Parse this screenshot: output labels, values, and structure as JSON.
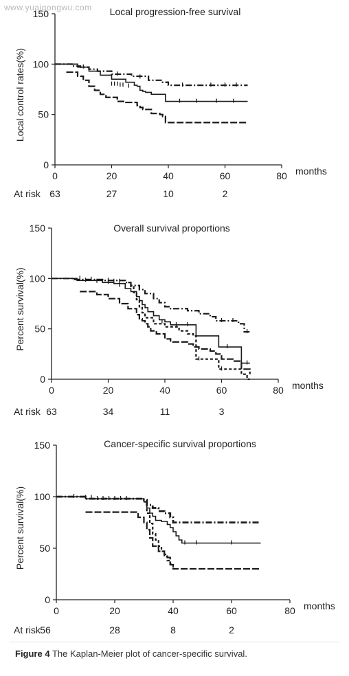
{
  "watermark": "www.yuaigongwu.com",
  "caption": {
    "label": "Figure 4",
    "text": "The Kaplan-Meier plot of cancer-specific survival."
  },
  "at_risk_label": "At risk",
  "x_unit": "months",
  "chart_data": [
    {
      "type": "line",
      "title": "Local progression-free survival",
      "ylabel": "Local control rates(%)",
      "xlabel": "months",
      "xlim": [
        0,
        80
      ],
      "ylim": [
        0,
        150
      ],
      "xticks": [
        0,
        20,
        40,
        60,
        80
      ],
      "yticks": [
        0,
        50,
        100,
        150
      ],
      "at_risk": {
        "first_label": "At risk",
        "x": [
          0,
          20,
          40,
          60
        ],
        "values": [
          "63",
          "27",
          "10",
          "2"
        ]
      },
      "series": [
        {
          "style": "dashdot",
          "points": [
            [
              0,
              100
            ],
            [
              4,
              100
            ],
            [
              6,
              98
            ],
            [
              9,
              97
            ],
            [
              12,
              95
            ],
            [
              15,
              93
            ],
            [
              20,
              90
            ],
            [
              27,
              88
            ],
            [
              33,
              84
            ],
            [
              38,
              82
            ],
            [
              40,
              79
            ],
            [
              68,
              79
            ]
          ],
          "censored": [
            [
              10,
              97
            ],
            [
              22,
              90
            ],
            [
              30,
              87
            ],
            [
              45,
              79
            ],
            [
              55,
              79
            ],
            [
              60,
              79
            ],
            [
              64,
              79
            ]
          ]
        },
        {
          "style": "solid",
          "points": [
            [
              0,
              100
            ],
            [
              6,
              100
            ],
            [
              8,
              97
            ],
            [
              12,
              93
            ],
            [
              16,
              89
            ],
            [
              20,
              85
            ],
            [
              25,
              82
            ],
            [
              28,
              79
            ],
            [
              29,
              78
            ],
            [
              30,
              74
            ],
            [
              31,
              73
            ],
            [
              32,
              72
            ],
            [
              34,
              70
            ],
            [
              38,
              70
            ],
            [
              39,
              63
            ],
            [
              68,
              63
            ]
          ],
          "censored": [
            [
              20,
              80
            ],
            [
              21,
              80
            ],
            [
              22,
              80
            ],
            [
              23,
              79
            ],
            [
              24,
              79
            ],
            [
              26,
              78
            ],
            [
              44,
              63
            ],
            [
              50,
              63
            ],
            [
              57,
              63
            ],
            [
              63,
              63
            ]
          ]
        },
        {
          "style": "dashed_long",
          "points": [
            [
              4,
              92
            ],
            [
              8,
              88
            ],
            [
              10,
              84
            ],
            [
              12,
              78
            ],
            [
              14,
              74
            ],
            [
              16,
              70
            ],
            [
              18,
              67
            ],
            [
              22,
              63
            ],
            [
              25,
              62
            ],
            [
              29,
              59
            ],
            [
              30,
              57
            ],
            [
              31,
              55
            ],
            [
              33,
              55
            ],
            [
              34,
              51
            ],
            [
              37,
              50
            ],
            [
              38,
              48
            ],
            [
              39,
              42
            ],
            [
              68,
              42
            ]
          ],
          "censored": []
        }
      ]
    },
    {
      "type": "line",
      "title": "Overall survival proportions",
      "ylabel": "Percent survival(%)",
      "xlabel": "months",
      "xlim": [
        0,
        80
      ],
      "ylim": [
        0,
        150
      ],
      "xticks": [
        0,
        20,
        40,
        60,
        80
      ],
      "yticks": [
        0,
        50,
        100,
        150
      ],
      "at_risk": {
        "first_label": "At risk",
        "x": [
          0,
          20,
          40,
          60
        ],
        "values": [
          "63",
          "34",
          "11",
          "3"
        ]
      },
      "series": [
        {
          "style": "dashdot",
          "points": [
            [
              0,
              100
            ],
            [
              6,
              100
            ],
            [
              8,
              99
            ],
            [
              12,
              99
            ],
            [
              18,
              98
            ],
            [
              26,
              96
            ],
            [
              28,
              93
            ],
            [
              31,
              89
            ],
            [
              33,
              85
            ],
            [
              36,
              80
            ],
            [
              38,
              76
            ],
            [
              40,
              72
            ],
            [
              42,
              70
            ],
            [
              48,
              68
            ],
            [
              52,
              65
            ],
            [
              56,
              62
            ],
            [
              58,
              58
            ],
            [
              64,
              58
            ],
            [
              66,
              55
            ],
            [
              68,
              47
            ],
            [
              70,
              47
            ]
          ],
          "censored": [
            [
              10,
              100
            ],
            [
              14,
              99
            ],
            [
              20,
              98
            ],
            [
              22,
              97
            ],
            [
              24,
              97
            ],
            [
              60,
              58
            ],
            [
              64,
              58
            ],
            [
              69,
              47
            ]
          ]
        },
        {
          "style": "solid",
          "points": [
            [
              0,
              100
            ],
            [
              8,
              100
            ],
            [
              9,
              98
            ],
            [
              14,
              98
            ],
            [
              18,
              96
            ],
            [
              22,
              95
            ],
            [
              26,
              90
            ],
            [
              28,
              87
            ],
            [
              30,
              82
            ],
            [
              31,
              78
            ],
            [
              32,
              74
            ],
            [
              33,
              71
            ],
            [
              34,
              67
            ],
            [
              36,
              63
            ],
            [
              38,
              59
            ],
            [
              40,
              57
            ],
            [
              42,
              54
            ],
            [
              50,
              54
            ],
            [
              51,
              43
            ],
            [
              58,
              43
            ],
            [
              59,
              32
            ],
            [
              66,
              32
            ],
            [
              67,
              16
            ],
            [
              70,
              16
            ]
          ],
          "censored": [
            [
              12,
              98
            ],
            [
              16,
              97
            ],
            [
              20,
              96
            ],
            [
              24,
              93
            ],
            [
              39,
              57
            ],
            [
              44,
              54
            ],
            [
              48,
              54
            ],
            [
              62,
              32
            ],
            [
              69,
              16
            ]
          ]
        },
        {
          "style": "dashed_long",
          "points": [
            [
              10,
              87
            ],
            [
              14,
              87
            ],
            [
              16,
              84
            ],
            [
              20,
              80
            ],
            [
              24,
              75
            ],
            [
              27,
              70
            ],
            [
              30,
              64
            ],
            [
              31,
              60
            ],
            [
              32,
              58
            ],
            [
              33,
              55
            ],
            [
              34,
              52
            ],
            [
              35,
              48
            ],
            [
              37,
              45
            ],
            [
              40,
              40
            ],
            [
              42,
              37
            ],
            [
              46,
              37
            ],
            [
              48,
              35
            ],
            [
              50,
              32
            ],
            [
              52,
              30
            ],
            [
              56,
              28
            ],
            [
              58,
              25
            ],
            [
              60,
              20
            ],
            [
              64,
              18
            ],
            [
              67,
              10
            ],
            [
              70,
              5
            ]
          ],
          "censored": []
        },
        {
          "style": "dashed_short",
          "points": [
            [
              27,
              96
            ],
            [
              28,
              92
            ],
            [
              29,
              86
            ],
            [
              30,
              79
            ],
            [
              31,
              72
            ],
            [
              32,
              66
            ],
            [
              33,
              61
            ],
            [
              36,
              55
            ],
            [
              40,
              52
            ],
            [
              45,
              48
            ],
            [
              48,
              45
            ],
            [
              50,
              43
            ],
            [
              51,
              20
            ],
            [
              58,
              20
            ],
            [
              59,
              10
            ],
            [
              66,
              10
            ],
            [
              67,
              5
            ],
            [
              69,
              0
            ],
            [
              70,
              0
            ]
          ],
          "censored": [
            [
              52,
              20
            ],
            [
              60,
              10
            ]
          ]
        }
      ]
    },
    {
      "type": "line",
      "title": "Cancer-specific survival proportions",
      "ylabel": "Percent survival(%)",
      "xlabel": "months",
      "xlim": [
        0,
        80
      ],
      "ylim": [
        0,
        150
      ],
      "xticks": [
        0,
        20,
        40,
        60,
        80
      ],
      "yticks": [
        0,
        50,
        100,
        150
      ],
      "at_risk": {
        "first_label": "At risk",
        "x": [
          0,
          20,
          40,
          60
        ],
        "values": [
          "56",
          "28",
          "8",
          "2"
        ]
      },
      "series": [
        {
          "style": "dashdot_bold",
          "points": [
            [
              0,
              100
            ],
            [
              8,
              100
            ],
            [
              10,
              98
            ],
            [
              24,
              98
            ],
            [
              30,
              97
            ],
            [
              31,
              92
            ],
            [
              33,
              89
            ],
            [
              35,
              86
            ],
            [
              37,
              84
            ],
            [
              39,
              80
            ],
            [
              40,
              75
            ],
            [
              70,
              75
            ]
          ],
          "censored": []
        },
        {
          "style": "solid",
          "points": [
            [
              0,
              100
            ],
            [
              8,
              100
            ],
            [
              10,
              98
            ],
            [
              29,
              98
            ],
            [
              30,
              95
            ],
            [
              31,
              89
            ],
            [
              32,
              84
            ],
            [
              33,
              81
            ],
            [
              34,
              77
            ],
            [
              36,
              76
            ],
            [
              38,
              73
            ],
            [
              39,
              70
            ],
            [
              40,
              66
            ],
            [
              41,
              62
            ],
            [
              42,
              58
            ],
            [
              43,
              55
            ],
            [
              70,
              55
            ]
          ],
          "censored": [
            [
              6,
              100
            ],
            [
              10,
              99
            ],
            [
              12,
              99
            ],
            [
              14,
              98
            ],
            [
              16,
              98
            ],
            [
              18,
              98
            ],
            [
              20,
              98
            ],
            [
              22,
              98
            ],
            [
              24,
              98
            ],
            [
              44,
              55
            ],
            [
              48,
              55
            ],
            [
              60,
              55
            ]
          ]
        },
        {
          "style": "dashed_long",
          "points": [
            [
              10,
              85
            ],
            [
              27,
              85
            ],
            [
              28,
              80
            ],
            [
              30,
              75
            ],
            [
              31,
              68
            ],
            [
              32,
              60
            ],
            [
              33,
              52
            ],
            [
              35,
              47
            ],
            [
              37,
              44
            ],
            [
              38,
              41
            ],
            [
              39,
              34
            ],
            [
              40,
              30
            ],
            [
              70,
              30
            ]
          ],
          "censored": []
        },
        {
          "style": "dashed_short",
          "points": [
            [
              30,
              95
            ],
            [
              31,
              84
            ],
            [
              32,
              74
            ],
            [
              33,
              64
            ],
            [
              34,
              58
            ],
            [
              35,
              52
            ],
            [
              36,
              47
            ],
            [
              37,
              42
            ],
            [
              38,
              38
            ],
            [
              39,
              35
            ],
            [
              40,
              30
            ]
          ],
          "censored": []
        }
      ]
    }
  ]
}
